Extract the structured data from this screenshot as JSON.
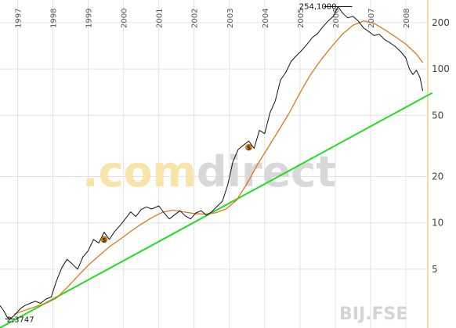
{
  "chart_data": {
    "type": "line",
    "ticker": "BIJ.FSE",
    "watermark": {
      "part1": ".com",
      "part2": "direct"
    },
    "x_ticks": [
      "1997",
      "1998",
      "1999",
      "2000",
      "2001",
      "2002",
      "2003",
      "2004",
      "2005",
      "2006",
      "2007",
      "2008"
    ],
    "y_scale": "log",
    "y_ticks": [
      5,
      10,
      20,
      50,
      100,
      200
    ],
    "ylim": [
      1.9,
      280
    ],
    "xlim": [
      1996.5,
      2008.6
    ],
    "annotations": {
      "low_label": "2,3747",
      "low_value": 2.3747,
      "low_x": 1996.78,
      "high_label": "254,1000",
      "high_value": 254.1,
      "high_x": 2006.08
    },
    "colors": {
      "price": "#111111",
      "moving_average": "#e07818",
      "trendline": "#22dd22",
      "grid": "#e2e2e2",
      "axis_band": "#f5d9a8",
      "marker": "#f08c00",
      "wm_part1": "#f8e4a8",
      "wm_part2": "#d8d8d8"
    },
    "markers": [
      {
        "x": 1999.45,
        "y": 7.8,
        "symbol": "$"
      },
      {
        "x": 2003.55,
        "y": 31,
        "symbol": "$"
      }
    ],
    "series": [
      {
        "name": "",
        "role": "price",
        "x": [
          1996.5,
          1996.6,
          1996.7,
          1996.78,
          1996.9,
          1997.0,
          1997.1,
          1997.2,
          1997.35,
          1997.5,
          1997.65,
          1997.8,
          1997.95,
          1998.1,
          1998.25,
          1998.4,
          1998.55,
          1998.7,
          1998.85,
          1999.0,
          1999.15,
          1999.3,
          1999.45,
          1999.6,
          1999.75,
          1999.9,
          2000.05,
          2000.2,
          2000.35,
          2000.5,
          2000.65,
          2000.8,
          2001.0,
          2001.15,
          2001.3,
          2001.45,
          2001.6,
          2001.75,
          2001.9,
          2002.05,
          2002.2,
          2002.35,
          2002.5,
          2002.65,
          2002.8,
          2002.95,
          2003.1,
          2003.25,
          2003.4,
          2003.55,
          2003.7,
          2003.85,
          2004.0,
          2004.15,
          2004.3,
          2004.45,
          2004.6,
          2004.75,
          2004.9,
          2005.05,
          2005.2,
          2005.35,
          2005.5,
          2005.65,
          2005.8,
          2005.95,
          2006.08,
          2006.2,
          2006.35,
          2006.5,
          2006.65,
          2006.8,
          2006.95,
          2007.1,
          2007.25,
          2007.4,
          2007.55,
          2007.7,
          2007.85,
          2008.0,
          2008.1,
          2008.2,
          2008.3,
          2008.4,
          2008.48
        ],
        "values": [
          2.9,
          2.7,
          2.45,
          2.37,
          2.5,
          2.65,
          2.8,
          2.9,
          3.0,
          3.1,
          3.0,
          3.2,
          3.3,
          4.2,
          5.1,
          5.8,
          5.4,
          5.0,
          6.0,
          6.6,
          7.8,
          7.4,
          8.7,
          7.8,
          8.8,
          9.6,
          10.6,
          11.8,
          11.0,
          12.2,
          12.7,
          12.3,
          12.9,
          11.6,
          10.6,
          11.3,
          12.0,
          11.1,
          10.6,
          11.6,
          12.0,
          11.2,
          11.8,
          12.8,
          13.8,
          17.5,
          25.0,
          30.0,
          32.0,
          34.0,
          30.5,
          40.0,
          38.0,
          52.0,
          62.0,
          85.0,
          95.0,
          112.0,
          122.0,
          132.0,
          145.0,
          160.0,
          170.0,
          188.0,
          205.0,
          220.0,
          254.1,
          232.0,
          215.0,
          220.0,
          205.0,
          185.0,
          175.0,
          165.0,
          168.0,
          155.0,
          148.0,
          140.0,
          130.0,
          118.0,
          100.0,
          92.0,
          98.0,
          88.0,
          72.0
        ]
      },
      {
        "name": "",
        "role": "moving_average",
        "x": [
          1996.9,
          1997.2,
          1997.5,
          1997.8,
          1998.1,
          1998.4,
          1998.7,
          1999.0,
          1999.3,
          1999.6,
          1999.9,
          2000.2,
          2000.5,
          2000.8,
          2001.1,
          2001.4,
          2001.7,
          2002.0,
          2002.3,
          2002.6,
          2002.9,
          2003.2,
          2003.5,
          2003.8,
          2004.1,
          2004.4,
          2004.7,
          2005.0,
          2005.3,
          2005.6,
          2005.9,
          2006.2,
          2006.5,
          2006.8,
          2007.1,
          2007.4,
          2007.7,
          2008.0,
          2008.3,
          2008.48
        ],
        "values": [
          2.55,
          2.7,
          2.85,
          3.0,
          3.25,
          3.8,
          4.5,
          5.3,
          6.1,
          7.0,
          7.8,
          8.8,
          9.8,
          10.8,
          11.7,
          12.1,
          11.8,
          11.5,
          11.4,
          11.6,
          12.3,
          14.0,
          18.0,
          24.0,
          31.0,
          40.0,
          52.0,
          70.0,
          92.0,
          115.0,
          140.0,
          168.0,
          192.0,
          205.0,
          198.0,
          180.0,
          162.0,
          145.0,
          125.0,
          110.0
        ]
      },
      {
        "name": "",
        "role": "trendline",
        "x": [
          1996.5,
          2008.75
        ],
        "values": [
          2.08,
          70.0
        ]
      }
    ]
  }
}
